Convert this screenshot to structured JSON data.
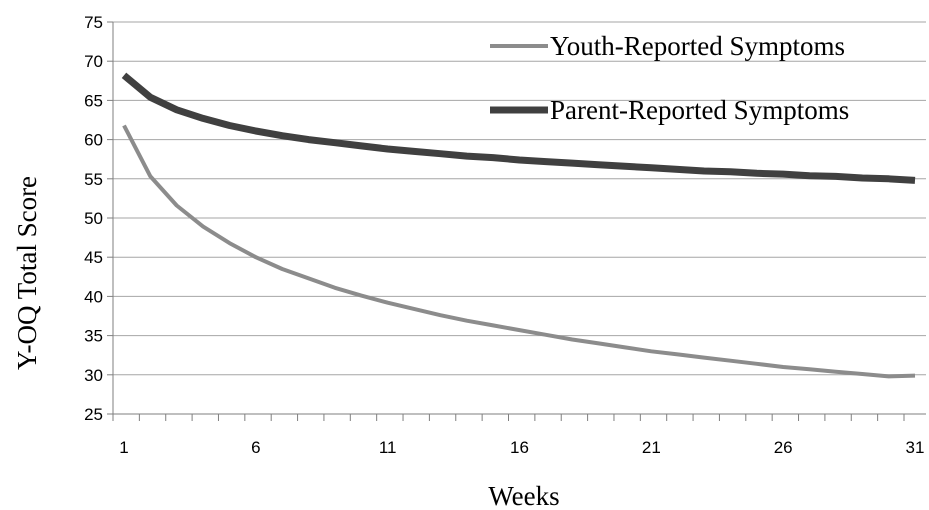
{
  "chart_data": {
    "type": "line",
    "title": "",
    "xlabel": "Weeks",
    "ylabel": "Y-OQ Total Score",
    "xlim": [
      1,
      31
    ],
    "ylim": [
      25,
      75
    ],
    "x_ticks": [
      1,
      6,
      11,
      16,
      21,
      26,
      31
    ],
    "y_ticks": [
      25,
      30,
      35,
      40,
      45,
      50,
      55,
      60,
      65,
      70,
      75
    ],
    "grid": true,
    "legend_position": "top-right",
    "x": [
      1,
      2,
      3,
      4,
      5,
      6,
      7,
      8,
      9,
      10,
      11,
      12,
      13,
      14,
      15,
      16,
      17,
      18,
      19,
      20,
      21,
      22,
      23,
      24,
      25,
      26,
      27,
      28,
      29,
      30,
      31
    ],
    "series": [
      {
        "name": "Youth-Reported Symptoms",
        "color": "#8c8c8c",
        "values": [
          61.8,
          55.3,
          51.6,
          48.9,
          46.8,
          45.0,
          43.5,
          42.3,
          41.1,
          40.1,
          39.2,
          38.4,
          37.6,
          36.9,
          36.3,
          35.7,
          35.1,
          34.5,
          34.0,
          33.5,
          33.0,
          32.6,
          32.2,
          31.8,
          31.4,
          31.0,
          30.7,
          30.4,
          30.1,
          29.8,
          29.9
        ]
      },
      {
        "name": "Parent-Reported Symptoms",
        "color": "#404040",
        "values": [
          68.2,
          65.4,
          63.8,
          62.7,
          61.8,
          61.1,
          60.5,
          60.0,
          59.6,
          59.2,
          58.8,
          58.5,
          58.2,
          57.9,
          57.7,
          57.4,
          57.2,
          57.0,
          56.8,
          56.6,
          56.4,
          56.2,
          56.0,
          55.9,
          55.7,
          55.6,
          55.4,
          55.3,
          55.1,
          55.0,
          54.8
        ]
      }
    ]
  }
}
